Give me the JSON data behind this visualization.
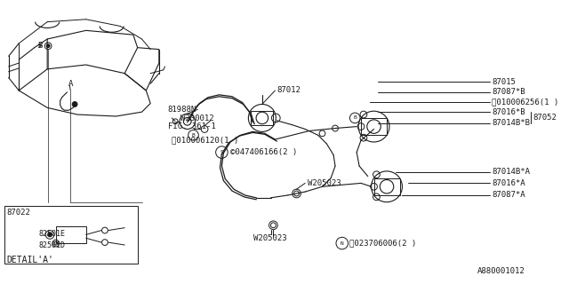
{
  "bg_color": "#ffffff",
  "line_color": "#1a1a1a",
  "part_number_main": "A880001012",
  "labels": {
    "detail_a": "DETAIL'A'",
    "fig_361": "FIG. 361-1",
    "87012": "87012",
    "81988N": "81988N",
    "W230012": "W230012",
    "S047406166": "©047406166(2 )",
    "B010006120": "Ⓑ010006120(1 )",
    "87022": "87022",
    "82501E": "82501E",
    "82501D": "82501D",
    "W205023a": "W205023",
    "W205023b": "W205023",
    "N023706006": "Ⓝ023706006(2 )",
    "87015": "87015",
    "87087B": "87087*B",
    "B010006256": "Ⓑ010006256(1 )",
    "87016B": "87016*B",
    "87014BB": "87014B*B",
    "87052": "87052",
    "87014BA": "87014B*A",
    "87016A": "87016*A",
    "87087A": "87087*A"
  }
}
